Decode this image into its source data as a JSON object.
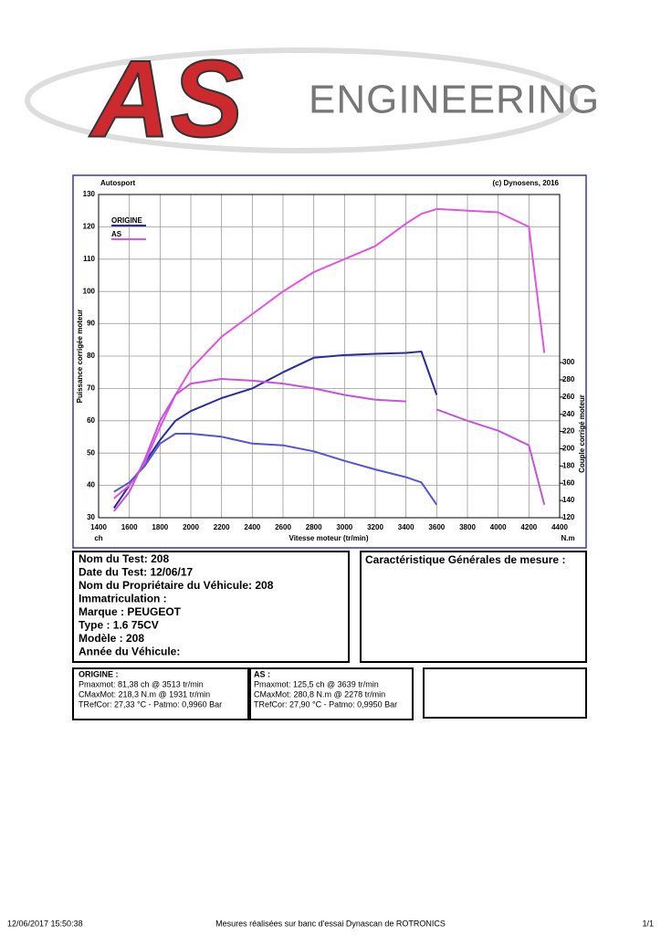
{
  "logo": {
    "mark": "AS",
    "text": "ENGINEERING"
  },
  "chart_data": {
    "type": "line",
    "header_left": "Autosport",
    "header_right": "(c) Dynosens, 2016",
    "x_label": "Vitesse moteur (tr/min)",
    "y_label": "Puissance corrigée moteur",
    "y2_label": "Couple corrigé moteur",
    "y_unit": "ch",
    "y2_unit": "N.m",
    "x": [
      1500,
      1600,
      1700,
      1800,
      1900,
      2000,
      2200,
      2400,
      2600,
      2800,
      3000,
      3200,
      3400,
      3500,
      3600,
      3800,
      4000,
      4200,
      4300
    ],
    "xlim": [
      1400,
      4400
    ],
    "xticks": [
      1400,
      1600,
      1800,
      2000,
      2200,
      2400,
      2600,
      2800,
      3000,
      3200,
      3400,
      3600,
      3800,
      4000,
      4200,
      4400
    ],
    "ylim": [
      30,
      130
    ],
    "yticks": [
      30,
      40,
      50,
      60,
      70,
      80,
      90,
      100,
      110,
      120,
      130
    ],
    "y2lim": [
      120,
      495
    ],
    "y2ticks": [
      120,
      140,
      160,
      180,
      200,
      220,
      240,
      260,
      280,
      300
    ],
    "grid": true,
    "legend": "upper left",
    "series": [
      {
        "name": "ORIGINE",
        "color": "#2b2b9c",
        "values": [
          33,
          40,
          47,
          54,
          60,
          63,
          67,
          70,
          75,
          79.5,
          80.3,
          80.7,
          81,
          81.4,
          68,
          null,
          null,
          null,
          null
        ]
      },
      {
        "name": "AS",
        "color": "#e055e0",
        "values": [
          36,
          40,
          47,
          58,
          68,
          76,
          86,
          93,
          100,
          106,
          110,
          114,
          121,
          124,
          125.5,
          125,
          124.5,
          120,
          81
        ]
      },
      {
        "color": "#5555d0",
        "axis": "y2",
        "values": [
          150,
          161,
          180,
          206,
          217.5,
          217.5,
          214,
          206,
          204,
          197,
          186,
          176,
          167,
          161,
          135,
          null,
          null,
          null,
          null
        ]
      },
      {
        "color": "#c455d8",
        "axis": "y2",
        "values": [
          127.5,
          150,
          187.5,
          232.5,
          262.5,
          275.6,
          281,
          279,
          275.6,
          270,
          262.5,
          257,
          255,
          null,
          245.6,
          232.5,
          221,
          204,
          135
        ]
      }
    ]
  },
  "test_info": {
    "lines": [
      "Nom du Test: 208",
      "Date du Test: 12/06/17",
      "Nom du Propriétaire du Véhicule: 208",
      "Immatriculation  :",
      "Marque  : PEUGEOT",
      "Type  : 1.6 75CV",
      "Modèle  : 208",
      "Année du Véhicule:"
    ]
  },
  "general": {
    "title": "Caractéristique Générales de mesure :"
  },
  "results": [
    {
      "title": "ORIGINE :",
      "lines": [
        "Pmaxmot: 81,38 ch @ 3513 tr/min",
        "CMaxMot: 218,3 N.m @ 1931 tr/min",
        "TRefCor: 27,33 °C - Patmo: 0,9960 Bar"
      ]
    },
    {
      "title": "AS :",
      "lines": [
        "Pmaxmot: 125,5 ch @ 3639 tr/min",
        "CMaxMot: 280,8 N.m @ 2278 tr/min",
        "TRefCor: 27,90 °C - Patmo: 0,9950 Bar"
      ]
    }
  ],
  "footer": {
    "left": "12/06/2017 15:50:38",
    "center": "Mesures réalisées sur banc d'essai Dynascan de ROTRONICS",
    "right": "1/1"
  }
}
